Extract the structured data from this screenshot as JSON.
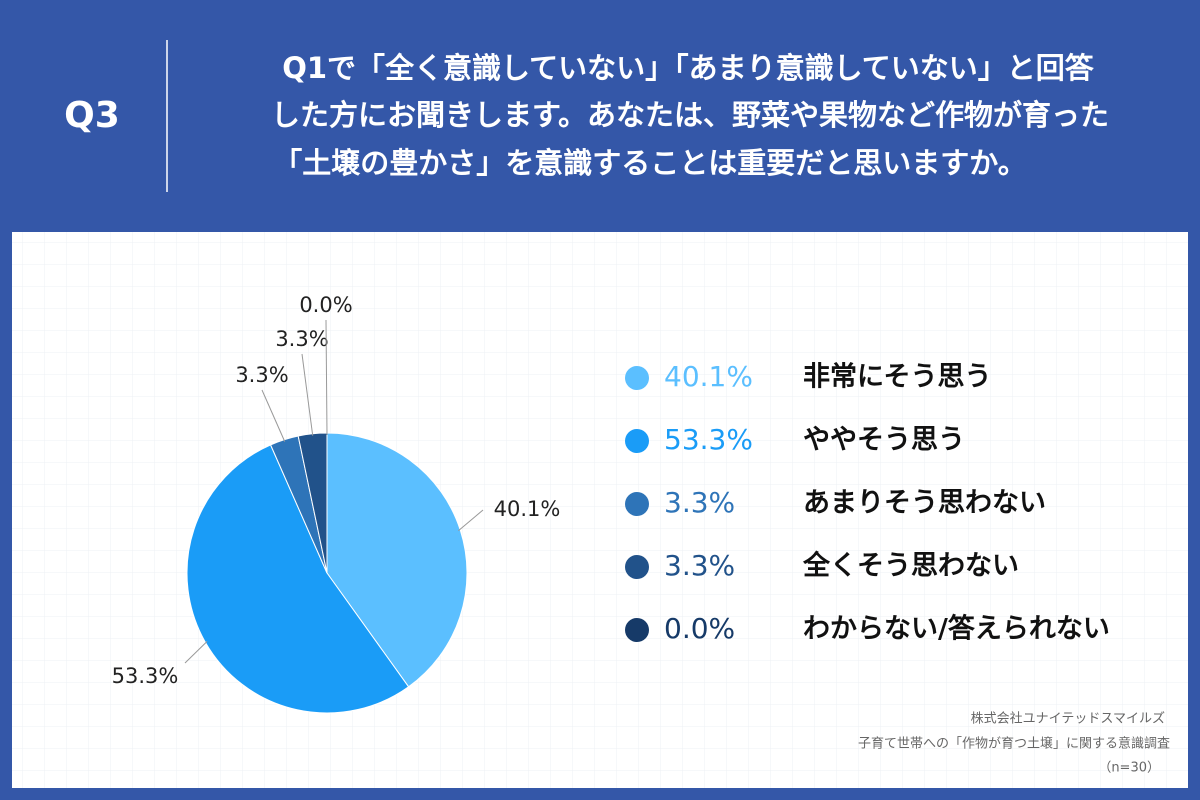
{
  "header": {
    "label": "Q3",
    "question": [
      "Q1で「全く意識していない」「あまり意識していない」と回答",
      "した方にお聞きします。あなたは、野菜や果物など作物が育った",
      "「土壌の豊かさ」を意識することは重要だと思いますか。"
    ]
  },
  "chart_data": {
    "type": "pie",
    "categories": [
      "非常にそう思う",
      "ややそう思う",
      "あまりそう思わない",
      "全くそう思わない",
      "わからない/答えられない"
    ],
    "values": [
      40.1,
      53.3,
      3.3,
      3.3,
      0.0
    ],
    "value_labels": [
      "40.1%",
      "53.3%",
      "3.3%",
      "3.3%",
      "0.0%"
    ],
    "colors": [
      "#5bbfff",
      "#1a9cf7",
      "#2e74b8",
      "#21528a",
      "#163a68"
    ]
  },
  "source": [
    "株式会社ユナイテッドスマイルズ",
    "子育て世帯への「作物が育つ土壌」に関する意識調査",
    "（n=30）"
  ]
}
